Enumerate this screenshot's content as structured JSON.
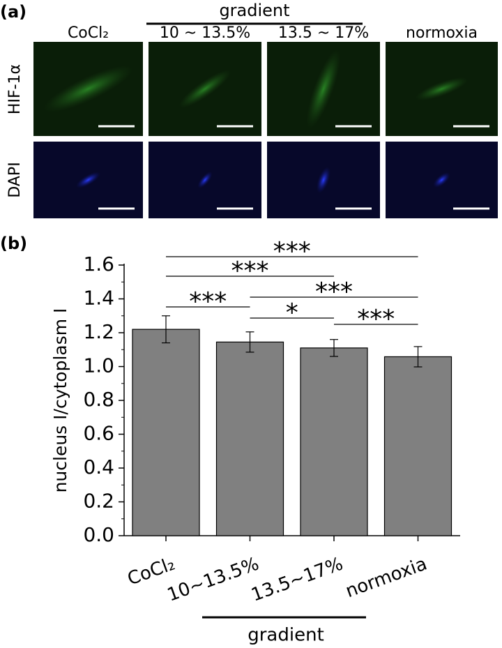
{
  "panel_a": {
    "label": "(a)",
    "group_label": "gradient",
    "columns": [
      "CoCl₂",
      "10 ~ 13.5%",
      "13.5 ~ 17%",
      "normoxia"
    ],
    "rows": [
      "HIF-1α",
      "DAPI"
    ]
  },
  "chart_data": {
    "type": "bar",
    "panel_label": "(b)",
    "y_label": "nucleus I/cytoplasm I",
    "categories": [
      "CoCl₂",
      "10~13.5%",
      "13.5~17%",
      "normoxia"
    ],
    "group_label": "gradient",
    "series": [
      {
        "name": "nucleus I/cytoplasm I",
        "color": "#808080",
        "values": [
          1.22,
          1.145,
          1.11,
          1.058
        ],
        "errors": [
          0.08,
          0.06,
          0.05,
          0.06
        ]
      }
    ],
    "ylim": [
      0,
      1.6
    ],
    "yticks": [
      {
        "value": 0,
        "label": "0.0"
      },
      0.2,
      0.4,
      0.6,
      0.8,
      {
        "value": 1,
        "label": "1.0"
      },
      1.2,
      1.4,
      1.6
    ],
    "significance": [
      {
        "pair": [
          0,
          3
        ],
        "label": "***"
      },
      {
        "pair": [
          0,
          2
        ],
        "label": "***"
      },
      {
        "pair": [
          0,
          1
        ],
        "label": "***"
      },
      {
        "pair": [
          1,
          3
        ],
        "label": "***"
      },
      {
        "pair": [
          1,
          2
        ],
        "label": "*"
      },
      {
        "pair": [
          2,
          3
        ],
        "label": "***"
      }
    ]
  }
}
